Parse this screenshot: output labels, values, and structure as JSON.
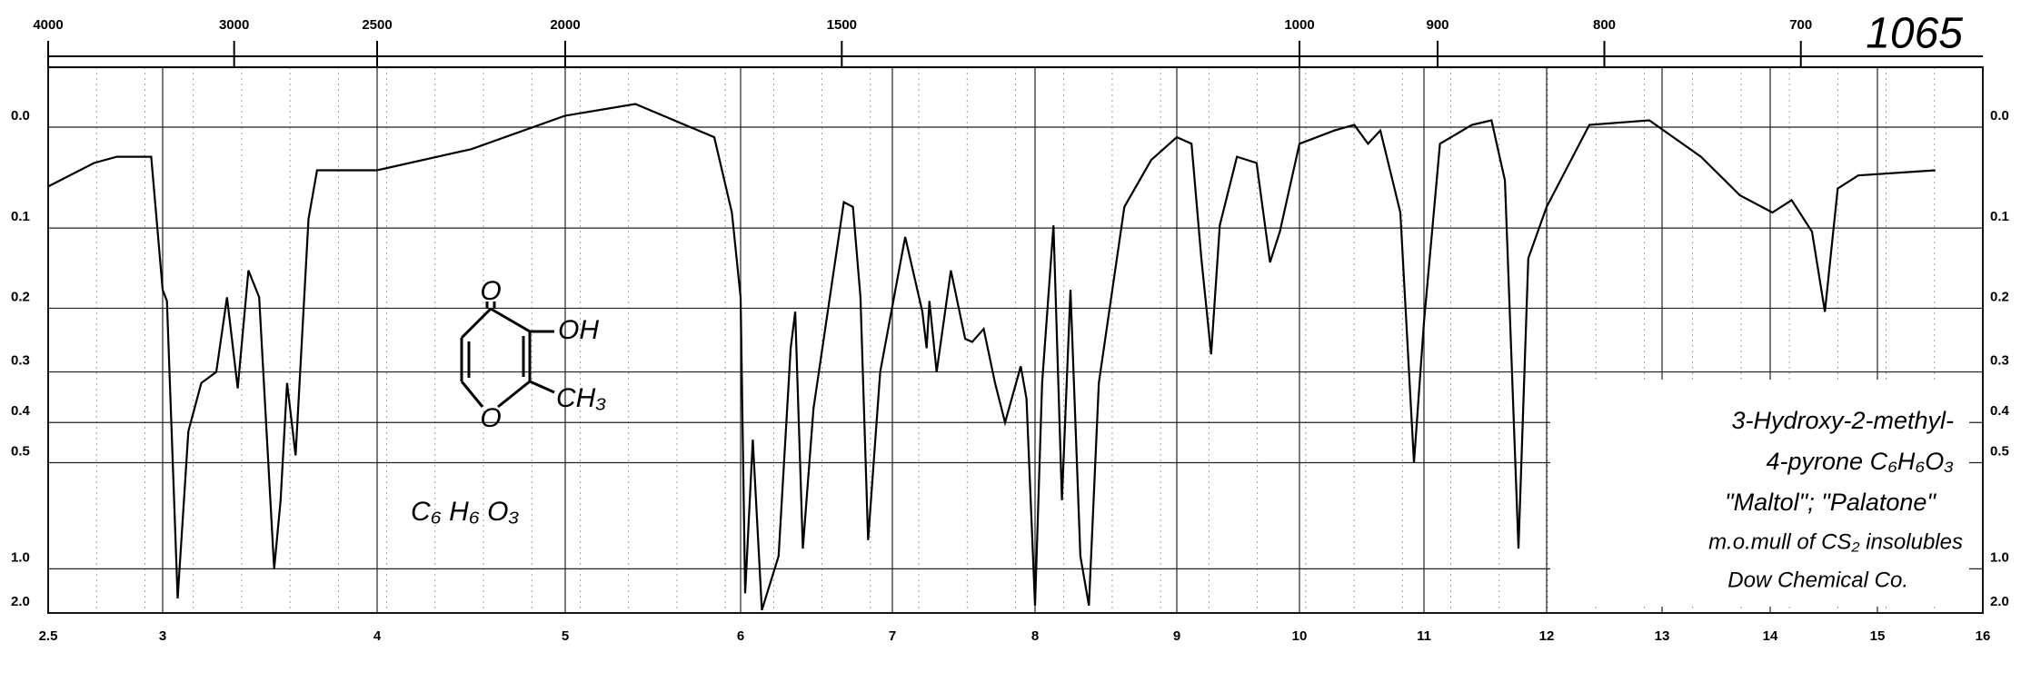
{
  "chart_data": {
    "type": "line",
    "color": "#000000",
    "x": [
      2.5,
      2.7,
      2.8,
      2.95,
      3.0,
      3.02,
      3.07,
      3.12,
      3.18,
      3.25,
      3.3,
      3.35,
      3.4,
      3.45,
      3.52,
      3.55,
      3.58,
      3.62,
      3.68,
      3.72,
      4.0,
      4.5,
      5.0,
      5.4,
      5.85,
      5.95,
      6.0,
      6.03,
      6.08,
      6.14,
      6.25,
      6.33,
      6.36,
      6.41,
      6.48,
      6.68,
      6.74,
      6.79,
      6.84,
      6.92,
      7.09,
      7.21,
      7.24,
      7.26,
      7.31,
      7.41,
      7.51,
      7.56,
      7.64,
      7.72,
      7.79,
      7.9,
      7.94,
      8.0,
      8.05,
      8.13,
      8.19,
      8.25,
      8.32,
      8.38,
      8.45,
      8.63,
      8.82,
      9.0,
      9.12,
      9.2,
      9.28,
      9.35,
      9.49,
      9.65,
      9.76,
      9.84,
      10.0,
      10.28,
      10.44,
      10.55,
      10.65,
      10.81,
      10.92,
      11.0,
      11.13,
      11.39,
      11.55,
      11.66,
      11.77,
      11.85,
      12.0,
      12.37,
      12.89,
      13.36,
      13.72,
      14.02,
      14.2,
      14.39,
      14.51,
      14.63,
      14.82,
      15.55
    ],
    "values": [
      0.056,
      0.033,
      0.027,
      0.027,
      0.175,
      0.19,
      1.4,
      0.42,
      0.32,
      0.3,
      0.185,
      0.33,
      0.15,
      0.185,
      1.0,
      0.62,
      0.32,
      0.48,
      0.09,
      0.04,
      0.04,
      0.02,
      -0.01,
      -0.02,
      0.009,
      0.083,
      0.185,
      1.3,
      0.44,
      1.8,
      0.9,
      0.26,
      0.205,
      0.85,
      0.37,
      0.072,
      0.077,
      0.185,
      0.8,
      0.3,
      0.11,
      0.205,
      0.26,
      0.19,
      0.3,
      0.15,
      0.245,
      0.25,
      0.23,
      0.32,
      0.4,
      0.29,
      0.35,
      1.6,
      0.32,
      0.097,
      0.62,
      0.175,
      0.9,
      1.6,
      0.32,
      0.077,
      0.03,
      0.009,
      0.015,
      0.135,
      0.27,
      0.097,
      0.027,
      0.033,
      0.14,
      0.104,
      0.015,
      0.003,
      -0.002,
      0.015,
      0.003,
      0.083,
      0.5,
      0.22,
      0.015,
      -0.002,
      -0.006,
      0.05,
      0.85,
      0.135,
      0.077,
      -0.002,
      -0.006,
      0.027,
      0.065,
      0.083,
      0.07,
      0.104,
      0.205,
      0.058,
      0.045,
      0.04
    ],
    "xlim": [
      2.5,
      16
    ],
    "xticks": [
      2.5,
      3,
      4,
      5,
      6,
      7,
      8,
      9,
      10,
      11,
      12,
      13,
      14,
      15,
      16
    ],
    "x2lim": [
      4000,
      625
    ],
    "x2ticks": [
      4000,
      3000,
      2500,
      2000,
      1500,
      1000,
      900,
      800,
      700
    ],
    "ylim": [
      -0.05,
      2
    ],
    "yticks": [
      {
        "value": 0,
        "label": "0.0"
      },
      0.1,
      0.2,
      0.3,
      0.4,
      0.5,
      {
        "value": 1,
        "label": "1.0"
      },
      {
        "value": 2,
        "label": "2.0"
      }
    ],
    "grid": true,
    "annotations": [
      "1065",
      "3-Hydroxy-2-methyl-",
      "4-pyrone  C₆H₆O₃",
      "\"Maltol\"; \"Palatone\"",
      "m.o.mull of CS₂ insolubles",
      "Dow Chemical Co."
    ],
    "structure_labels": [
      "O",
      "OH",
      "CH₃",
      "O",
      "C₆ H₆ O₃"
    ]
  }
}
